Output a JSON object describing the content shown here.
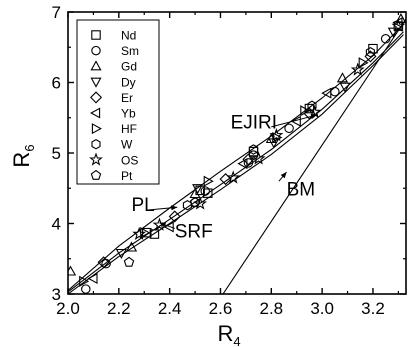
{
  "chart_data": {
    "type": "scatter",
    "title": "",
    "xlabel": "R",
    "xlabel_sub": "4",
    "ylabel": "R",
    "ylabel_sub": "6",
    "xlim": [
      2.0,
      3.33
    ],
    "ylim": [
      3.0,
      7.0
    ],
    "xticks": [
      "2.0",
      "2.2",
      "2.4",
      "2.6",
      "2.8",
      "3.0",
      "3.2"
    ],
    "xtick_values": [
      2.0,
      2.2,
      2.4,
      2.6,
      2.8,
      3.0,
      3.2
    ],
    "yticks": [
      "3",
      "4",
      "5",
      "6",
      "7"
    ],
    "ytick_values": [
      3,
      4,
      5,
      6,
      7
    ],
    "grid": false,
    "legend_position": "top-left",
    "series": [
      {
        "name": "Nd",
        "marker": "square",
        "points": [
          [
            2.31,
            3.87
          ],
          [
            2.34,
            3.85
          ],
          [
            2.52,
            4.47
          ],
          [
            2.55,
            4.43
          ],
          [
            2.73,
            5.02
          ],
          [
            2.95,
            5.63
          ],
          [
            3.2,
            6.48
          ],
          [
            3.3,
            6.8
          ]
        ]
      },
      {
        "name": "Sm",
        "marker": "circle",
        "points": [
          [
            2.07,
            3.07
          ],
          [
            2.15,
            3.43
          ],
          [
            2.5,
            4.3
          ],
          [
            2.54,
            4.46
          ],
          [
            2.71,
            4.86
          ],
          [
            2.73,
            4.97
          ],
          [
            2.87,
            5.35
          ],
          [
            3.05,
            5.87
          ],
          [
            3.25,
            6.62
          ]
        ]
      },
      {
        "name": "Gd",
        "marker": "triangle-up",
        "points": [
          [
            2.01,
            3.32
          ],
          [
            2.25,
            3.66
          ],
          [
            2.5,
            4.42
          ],
          [
            2.8,
            5.2
          ],
          [
            3.08,
            6.06
          ],
          [
            3.31,
            6.9
          ]
        ]
      },
      {
        "name": "Dy",
        "marker": "triangle-down",
        "points": [
          [
            2.21,
            3.58
          ],
          [
            2.51,
            4.5
          ],
          [
            2.81,
            5.15
          ],
          [
            3.09,
            5.94
          ],
          [
            3.28,
            6.72
          ]
        ]
      },
      {
        "name": "Er",
        "marker": "diamond",
        "points": [
          [
            2.14,
            3.45
          ],
          [
            2.42,
            4.1
          ],
          [
            2.62,
            4.63
          ],
          [
            2.71,
            4.91
          ],
          [
            2.95,
            5.56
          ],
          [
            3.19,
            6.37
          ]
        ]
      },
      {
        "name": "Yb",
        "marker": "triangle-left",
        "points": [
          [
            2.1,
            3.22
          ],
          [
            2.4,
            3.95
          ],
          [
            2.69,
            4.85
          ],
          [
            2.9,
            5.45
          ],
          [
            3.02,
            5.85
          ],
          [
            3.3,
            6.85
          ]
        ]
      },
      {
        "name": "HF",
        "marker": "triangle-right",
        "points": [
          [
            2.06,
            3.18
          ],
          [
            2.3,
            3.87
          ],
          [
            2.55,
            4.6
          ],
          [
            2.82,
            5.22
          ],
          [
            2.93,
            5.6
          ],
          [
            3.16,
            6.28
          ]
        ]
      },
      {
        "name": "W",
        "marker": "hexagon",
        "points": [
          [
            2.47,
            4.26
          ],
          [
            2.73,
            5.05
          ],
          [
            2.96,
            5.67
          ],
          [
            3.19,
            6.43
          ]
        ]
      },
      {
        "name": "OS",
        "marker": "star",
        "points": [
          [
            2.28,
            3.85
          ],
          [
            2.36,
            3.98
          ],
          [
            2.52,
            4.28
          ],
          [
            2.65,
            4.65
          ],
          [
            2.75,
            4.92
          ],
          [
            2.82,
            5.25
          ],
          [
            2.97,
            5.58
          ],
          [
            3.14,
            6.18
          ],
          [
            3.3,
            6.8
          ]
        ]
      },
      {
        "name": "Pt",
        "marker": "pentagon",
        "points": [
          [
            2.24,
            3.45
          ],
          [
            2.5,
            4.3
          ]
        ]
      }
    ],
    "curves": [
      {
        "name": "EJIRI",
        "points": [
          [
            2.0,
            3.05
          ],
          [
            2.2,
            3.68
          ],
          [
            2.4,
            4.22
          ],
          [
            2.6,
            4.74
          ],
          [
            2.8,
            5.24
          ],
          [
            3.0,
            5.78
          ],
          [
            3.2,
            6.38
          ],
          [
            3.32,
            6.83
          ]
        ]
      },
      {
        "name": "PL",
        "points": [
          [
            2.0,
            3.03
          ],
          [
            2.2,
            3.58
          ],
          [
            2.4,
            4.06
          ],
          [
            2.6,
            4.55
          ],
          [
            2.8,
            5.05
          ],
          [
            3.0,
            5.62
          ],
          [
            3.2,
            6.28
          ],
          [
            3.32,
            6.72
          ]
        ]
      },
      {
        "name": "SRF",
        "points": [
          [
            2.0,
            3.0
          ],
          [
            2.2,
            3.53
          ],
          [
            2.4,
            4.0
          ],
          [
            2.6,
            4.48
          ],
          [
            2.8,
            4.98
          ],
          [
            3.0,
            5.55
          ],
          [
            3.2,
            6.24
          ],
          [
            3.32,
            6.68
          ]
        ]
      },
      {
        "name": "BM",
        "points": [
          [
            2.61,
            3.0
          ],
          [
            3.33,
            6.9
          ]
        ]
      }
    ],
    "annotations": [
      {
        "text": "EJIRI",
        "label_at": [
          2.64,
          5.35
        ],
        "arrow_from": [
          2.8,
          5.37
        ],
        "arrow_to": [
          2.98,
          5.54
        ]
      },
      {
        "text": "PL",
        "label_at": [
          2.25,
          4.18
        ],
        "arrow_from": [
          2.31,
          4.19
        ],
        "arrow_to": [
          2.43,
          4.23
        ]
      },
      {
        "text": "SRF",
        "label_at": [
          2.42,
          3.8
        ],
        "arrow_from": [
          2.42,
          3.93
        ],
        "arrow_to": [
          2.36,
          4.01
        ]
      },
      {
        "text": "BM",
        "label_at": [
          2.86,
          4.4
        ],
        "arrow_from": [
          2.83,
          4.6
        ],
        "arrow_to": [
          2.86,
          4.73
        ]
      }
    ]
  }
}
